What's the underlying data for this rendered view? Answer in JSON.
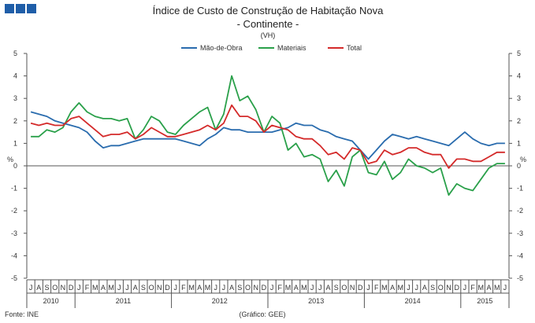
{
  "logo": {
    "squares": 3,
    "color": "#1f5ea8"
  },
  "chart_data": {
    "type": "line",
    "title": "Índice de Custo de Construção de Habitação Nova",
    "subtitle": "- Continente -",
    "unit_note": "(VH)",
    "ylabel_left": "%",
    "ylabel_right": "%",
    "ylim": [
      -5,
      5
    ],
    "yticks": [
      -5,
      -4,
      -3,
      -2,
      -1,
      0,
      1,
      2,
      3,
      4,
      5
    ],
    "grid": false,
    "legend_position": "top",
    "months": [
      "J",
      "A",
      "S",
      "O",
      "N",
      "D",
      "J",
      "F",
      "M",
      "A",
      "M",
      "J",
      "J",
      "A",
      "S",
      "O",
      "N",
      "D",
      "J",
      "F",
      "M",
      "A",
      "M",
      "J",
      "J",
      "A",
      "S",
      "O",
      "N",
      "D",
      "J",
      "F",
      "M",
      "A",
      "M",
      "J",
      "J",
      "A",
      "S",
      "O",
      "N",
      "D",
      "J",
      "F",
      "M",
      "A",
      "M",
      "J",
      "J",
      "A",
      "S",
      "O",
      "N",
      "D",
      "J",
      "F",
      "M",
      "A",
      "M",
      "J"
    ],
    "years": [
      {
        "label": "2010",
        "start": 0,
        "count": 6
      },
      {
        "label": "2011",
        "start": 6,
        "count": 12
      },
      {
        "label": "2012",
        "start": 18,
        "count": 12
      },
      {
        "label": "2013",
        "start": 30,
        "count": 12
      },
      {
        "label": "2014",
        "start": 42,
        "count": 12
      },
      {
        "label": "2015",
        "start": 54,
        "count": 6
      }
    ],
    "series": [
      {
        "name": "Mão-de-Obra",
        "color": "#2a6cae",
        "values": [
          2.4,
          2.3,
          2.2,
          2.0,
          1.9,
          1.8,
          1.7,
          1.5,
          1.1,
          0.8,
          0.9,
          0.9,
          1.0,
          1.1,
          1.2,
          1.2,
          1.2,
          1.2,
          1.2,
          1.1,
          1.0,
          0.9,
          1.2,
          1.4,
          1.7,
          1.6,
          1.6,
          1.5,
          1.5,
          1.5,
          1.5,
          1.6,
          1.7,
          1.9,
          1.8,
          1.8,
          1.6,
          1.5,
          1.3,
          1.2,
          1.1,
          0.7,
          0.3,
          0.7,
          1.1,
          1.4,
          1.3,
          1.2,
          1.3,
          1.2,
          1.1,
          1.0,
          0.9,
          1.2,
          1.5,
          1.2,
          1.0,
          0.9,
          1.0,
          1.0
        ]
      },
      {
        "name": "Materiais",
        "color": "#2aa04a",
        "values": [
          1.3,
          1.3,
          1.6,
          1.5,
          1.7,
          2.4,
          2.8,
          2.4,
          2.2,
          2.1,
          2.1,
          2.0,
          2.1,
          1.2,
          1.6,
          2.2,
          2.0,
          1.5,
          1.4,
          1.8,
          2.1,
          2.4,
          2.6,
          1.6,
          2.3,
          4.0,
          2.9,
          3.1,
          2.5,
          1.5,
          2.2,
          1.9,
          0.7,
          1.0,
          0.4,
          0.5,
          0.3,
          -0.7,
          -0.2,
          -0.9,
          0.4,
          0.7,
          -0.3,
          -0.4,
          0.2,
          -0.6,
          -0.3,
          0.3,
          0.0,
          -0.1,
          -0.3,
          -0.1,
          -1.3,
          -0.8,
          -1.0,
          -1.1,
          -0.6,
          -0.1,
          0.1,
          0.1
        ]
      },
      {
        "name": "Total",
        "color": "#d42a2a",
        "values": [
          1.9,
          1.8,
          1.9,
          1.8,
          1.8,
          2.1,
          2.2,
          1.9,
          1.6,
          1.3,
          1.4,
          1.4,
          1.5,
          1.2,
          1.4,
          1.7,
          1.5,
          1.3,
          1.3,
          1.4,
          1.5,
          1.6,
          1.8,
          1.6,
          1.9,
          2.7,
          2.2,
          2.2,
          2.0,
          1.5,
          1.8,
          1.7,
          1.6,
          1.3,
          1.2,
          1.2,
          0.9,
          0.5,
          0.6,
          0.3,
          0.8,
          0.7,
          0.1,
          0.2,
          0.7,
          0.5,
          0.6,
          0.8,
          0.8,
          0.6,
          0.5,
          0.5,
          -0.1,
          0.3,
          0.3,
          0.2,
          0.2,
          0.4,
          0.6,
          0.6
        ]
      }
    ]
  },
  "footer": {
    "source": "Fonte: INE",
    "credit": "(Gráfico: GEE)"
  }
}
